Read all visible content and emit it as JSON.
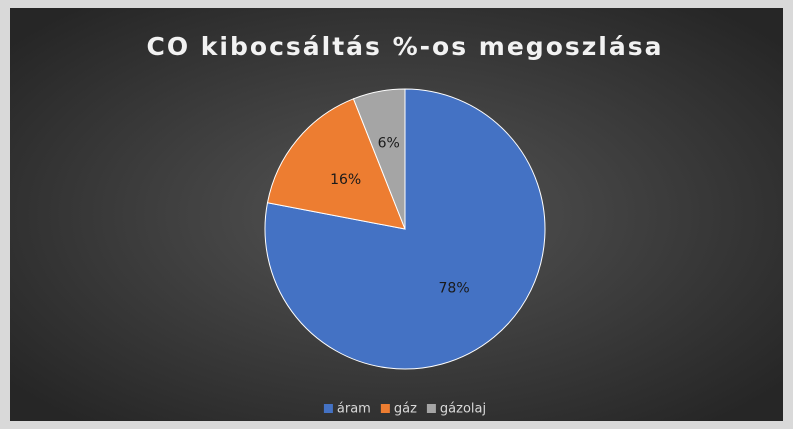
{
  "chart_data": {
    "type": "pie",
    "title": "CO kibocsáltás %-os megoszlása",
    "categories": [
      "áram",
      "gáz",
      "gázolaj"
    ],
    "values": [
      78,
      16,
      6
    ],
    "value_labels": [
      "78%",
      "16%",
      "6%"
    ],
    "colors": [
      "#4472c4",
      "#ed7d31",
      "#a5a5a5"
    ],
    "legend": "bottom"
  }
}
